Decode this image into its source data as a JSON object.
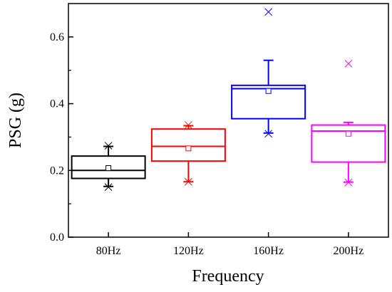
{
  "chart_data": {
    "type": "box",
    "title": "",
    "xlabel": "Frequency",
    "ylabel": "PSG (g)",
    "ylim": [
      0.0,
      0.7
    ],
    "yticks": [
      "0.0",
      "0.2",
      "0.4",
      "0.6"
    ],
    "categories": [
      "80Hz",
      "120Hz",
      "160Hz",
      "200Hz"
    ],
    "boxes": [
      {
        "category": "80Hz",
        "color": "#000000",
        "whisker_low": 0.152,
        "q1": 0.176,
        "median": 0.2,
        "q3": 0.243,
        "whisker_high": 0.272,
        "mean": 0.207,
        "min": 0.15,
        "max": 0.274,
        "outliers": []
      },
      {
        "category": "120Hz",
        "color": "#ff0000",
        "whisker_low": 0.166,
        "q1": 0.228,
        "median": 0.272,
        "q3": 0.324,
        "whisker_high": 0.334,
        "mean": 0.266,
        "min": 0.166,
        "max": 0.336,
        "outliers": []
      },
      {
        "category": "160Hz",
        "color": "#0000ff",
        "whisker_low": 0.312,
        "q1": 0.355,
        "median": 0.445,
        "q3": 0.455,
        "whisker_high": 0.53,
        "mean": 0.438,
        "min": 0.31,
        "max": 0.675,
        "outliers": [
          0.675
        ]
      },
      {
        "category": "200Hz",
        "color": "#ff00ff",
        "whisker_low": 0.165,
        "q1": 0.225,
        "median": 0.318,
        "q3": 0.336,
        "whisker_high": 0.344,
        "mean": 0.31,
        "min": 0.164,
        "max": 0.52,
        "outliers": [
          0.52
        ]
      }
    ],
    "grid": false,
    "legend": "none"
  }
}
